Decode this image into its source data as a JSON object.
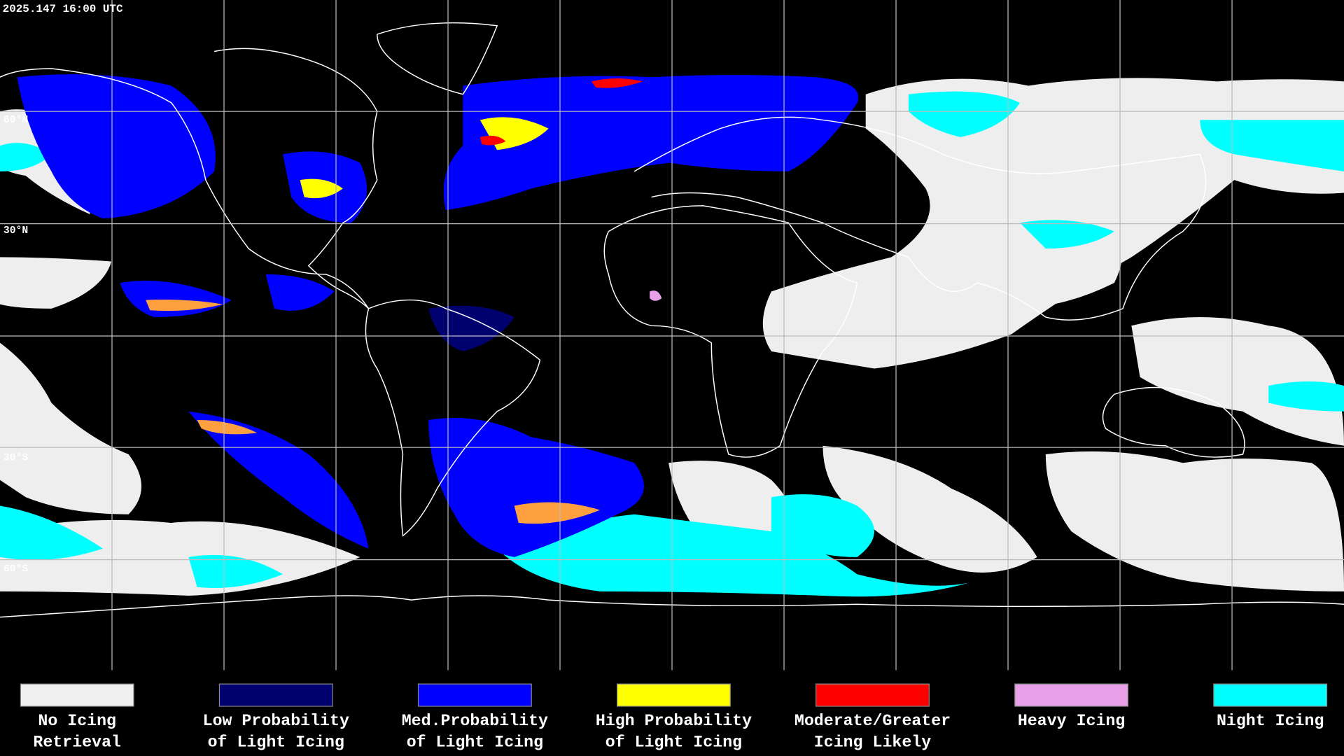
{
  "header": {
    "timestamp": "2025.147 16:00 UTC"
  },
  "lat_labels": [
    "60°N",
    "30°N",
    "30°S",
    "60°S"
  ],
  "legend": [
    {
      "lines": [
        "No Icing",
        "Retrieval"
      ],
      "color": "#f0f0f0"
    },
    {
      "lines": [
        "Low Probability",
        "of Light Icing"
      ],
      "color": "#00006e"
    },
    {
      "lines": [
        "Med.Probability",
        "of Light Icing"
      ],
      "color": "#0000ff"
    },
    {
      "lines": [
        "High Probability",
        "of Light Icing"
      ],
      "color": "#ffff00"
    },
    {
      "lines": [
        "Moderate/Greater",
        "Icing Likely"
      ],
      "color": "#ff0000"
    },
    {
      "lines": [
        "Heavy Icing"
      ],
      "color": "#e8a0e8"
    },
    {
      "lines": [
        "Night Icing"
      ],
      "color": "#00ffff"
    }
  ]
}
